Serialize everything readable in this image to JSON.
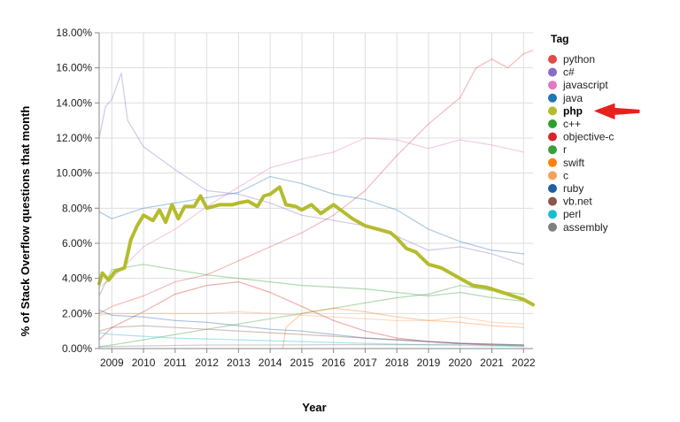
{
  "chart_data": {
    "type": "line",
    "title": "",
    "xlabel": "Year",
    "ylabel": "% of Stack Overflow questions that month",
    "x_ticks": [
      "2009",
      "2010",
      "2011",
      "2012",
      "2013",
      "2014",
      "2015",
      "2016",
      "2017",
      "2018",
      "2019",
      "2020",
      "2021",
      "2022"
    ],
    "y_ticks": [
      "0.00%",
      "2.00%",
      "4.00%",
      "6.00%",
      "8.00%",
      "10.00%",
      "12.00%",
      "14.00%",
      "16.00%",
      "18.00%"
    ],
    "xlim": [
      2008.6,
      2022.3
    ],
    "ylim": [
      0,
      18
    ],
    "grid": true,
    "legend_title": "Tag",
    "legend_position": "right",
    "highlight": "php",
    "series": [
      {
        "name": "python",
        "color": "#e34a48",
        "points": [
          [
            2008.6,
            2
          ],
          [
            2009,
            2.4
          ],
          [
            2010,
            3
          ],
          [
            2011,
            3.8
          ],
          [
            2012,
            4.2
          ],
          [
            2013,
            5
          ],
          [
            2014,
            5.8
          ],
          [
            2015,
            6.6
          ],
          [
            2016,
            7.6
          ],
          [
            2017,
            9
          ],
          [
            2018,
            11
          ],
          [
            2019,
            12.8
          ],
          [
            2020,
            14.3
          ],
          [
            2020.5,
            16
          ],
          [
            2021,
            16.5
          ],
          [
            2021.5,
            16
          ],
          [
            2022,
            16.8
          ],
          [
            2022.3,
            17
          ]
        ]
      },
      {
        "name": "c#",
        "color": "#8c6bc8",
        "points": [
          [
            2008.6,
            12
          ],
          [
            2008.8,
            13.8
          ],
          [
            2009,
            14.2
          ],
          [
            2009.3,
            15.7
          ],
          [
            2009.5,
            13
          ],
          [
            2010,
            11.5
          ],
          [
            2011,
            10.2
          ],
          [
            2012,
            9
          ],
          [
            2013,
            8.8
          ],
          [
            2014,
            8.3
          ],
          [
            2015,
            7.6
          ],
          [
            2016,
            7.3
          ],
          [
            2017,
            7
          ],
          [
            2018,
            6.4
          ],
          [
            2019,
            5.6
          ],
          [
            2020,
            5.8
          ],
          [
            2021,
            5.4
          ],
          [
            2022,
            4.8
          ]
        ]
      },
      {
        "name": "javascript",
        "color": "#e377c2",
        "points": [
          [
            2008.6,
            3.5
          ],
          [
            2009,
            4
          ],
          [
            2010,
            5.8
          ],
          [
            2011,
            6.8
          ],
          [
            2012,
            8.1
          ],
          [
            2013,
            9.2
          ],
          [
            2014,
            10.3
          ],
          [
            2015,
            10.8
          ],
          [
            2016,
            11.2
          ],
          [
            2017,
            12
          ],
          [
            2018,
            11.9
          ],
          [
            2019,
            11.4
          ],
          [
            2020,
            11.9
          ],
          [
            2021,
            11.6
          ],
          [
            2022,
            11.2
          ]
        ]
      },
      {
        "name": "java",
        "color": "#1f77b4",
        "points": [
          [
            2008.6,
            7.8
          ],
          [
            2009,
            7.4
          ],
          [
            2010,
            8
          ],
          [
            2011,
            8.3
          ],
          [
            2012,
            8.6
          ],
          [
            2013,
            8.9
          ],
          [
            2014,
            9.8
          ],
          [
            2015,
            9.4
          ],
          [
            2016,
            8.8
          ],
          [
            2017,
            8.5
          ],
          [
            2018,
            7.9
          ],
          [
            2019,
            6.8
          ],
          [
            2020,
            6.1
          ],
          [
            2021,
            5.6
          ],
          [
            2022,
            5.4
          ]
        ]
      },
      {
        "name": "php",
        "color": "#b4bc2c",
        "points": [
          [
            2008.6,
            3.7
          ],
          [
            2008.7,
            4.3
          ],
          [
            2008.9,
            3.9
          ],
          [
            2009.1,
            4.4
          ],
          [
            2009.4,
            4.6
          ],
          [
            2009.6,
            6.2
          ],
          [
            2009.8,
            7
          ],
          [
            2010,
            7.6
          ],
          [
            2010.3,
            7.3
          ],
          [
            2010.5,
            7.9
          ],
          [
            2010.7,
            7.2
          ],
          [
            2010.9,
            8.2
          ],
          [
            2011.1,
            7.4
          ],
          [
            2011.3,
            8.1
          ],
          [
            2011.6,
            8.1
          ],
          [
            2011.8,
            8.7
          ],
          [
            2012,
            8.0
          ],
          [
            2012.4,
            8.2
          ],
          [
            2012.8,
            8.2
          ],
          [
            2013,
            8.3
          ],
          [
            2013.3,
            8.4
          ],
          [
            2013.6,
            8.1
          ],
          [
            2013.8,
            8.7
          ],
          [
            2014.0,
            8.8
          ],
          [
            2014.3,
            9.2
          ],
          [
            2014.5,
            8.2
          ],
          [
            2014.8,
            8.1
          ],
          [
            2015,
            7.9
          ],
          [
            2015.3,
            8.2
          ],
          [
            2015.6,
            7.7
          ],
          [
            2016,
            8.2
          ],
          [
            2016.3,
            7.8
          ],
          [
            2016.6,
            7.4
          ],
          [
            2017,
            7.0
          ],
          [
            2017.4,
            6.8
          ],
          [
            2017.8,
            6.6
          ],
          [
            2018.0,
            6.3
          ],
          [
            2018.3,
            5.7
          ],
          [
            2018.6,
            5.5
          ],
          [
            2019,
            4.8
          ],
          [
            2019.4,
            4.6
          ],
          [
            2019.8,
            4.2
          ],
          [
            2020,
            4.0
          ],
          [
            2020.4,
            3.6
          ],
          [
            2020.8,
            3.5
          ],
          [
            2021,
            3.4
          ],
          [
            2021.5,
            3.1
          ],
          [
            2022,
            2.8
          ],
          [
            2022.3,
            2.5
          ]
        ]
      },
      {
        "name": "c++",
        "color": "#2ca02c",
        "points": [
          [
            2008.6,
            3
          ],
          [
            2009,
            4.5
          ],
          [
            2010,
            4.8
          ],
          [
            2011,
            4.5
          ],
          [
            2012,
            4.2
          ],
          [
            2013,
            4.0
          ],
          [
            2014,
            3.8
          ],
          [
            2015,
            3.6
          ],
          [
            2016,
            3.5
          ],
          [
            2017,
            3.4
          ],
          [
            2018,
            3.2
          ],
          [
            2019,
            3.0
          ],
          [
            2020,
            3.2
          ],
          [
            2021,
            2.9
          ],
          [
            2022,
            2.7
          ]
        ]
      },
      {
        "name": "objective-c",
        "color": "#d62728",
        "points": [
          [
            2008.6,
            0.5
          ],
          [
            2009,
            1.2
          ],
          [
            2010,
            2.1
          ],
          [
            2011,
            3.1
          ],
          [
            2012,
            3.6
          ],
          [
            2013,
            3.8
          ],
          [
            2014,
            3.2
          ],
          [
            2015,
            2.4
          ],
          [
            2016,
            1.6
          ],
          [
            2017,
            1
          ],
          [
            2018,
            0.6
          ],
          [
            2019,
            0.4
          ],
          [
            2020,
            0.3
          ],
          [
            2021,
            0.2
          ],
          [
            2022,
            0.15
          ]
        ]
      },
      {
        "name": "r",
        "color": "#3a9e3a",
        "points": [
          [
            2008.6,
            0.1
          ],
          [
            2009,
            0.2
          ],
          [
            2010,
            0.5
          ],
          [
            2011,
            0.8
          ],
          [
            2012,
            1.1
          ],
          [
            2013,
            1.4
          ],
          [
            2014,
            1.7
          ],
          [
            2015,
            2.0
          ],
          [
            2016,
            2.3
          ],
          [
            2017,
            2.6
          ],
          [
            2018,
            2.9
          ],
          [
            2019,
            3.1
          ],
          [
            2020,
            3.6
          ],
          [
            2021,
            3.3
          ],
          [
            2022,
            3.1
          ]
        ]
      },
      {
        "name": "swift",
        "color": "#ff7f0e",
        "points": [
          [
            2014.4,
            0
          ],
          [
            2014.5,
            1.2
          ],
          [
            2015,
            2.0
          ],
          [
            2016,
            2.3
          ],
          [
            2017,
            2.1
          ],
          [
            2018,
            1.8
          ],
          [
            2019,
            1.6
          ],
          [
            2020,
            1.5
          ],
          [
            2021,
            1.3
          ],
          [
            2022,
            1.2
          ]
        ]
      },
      {
        "name": "c",
        "color": "#f5a05c",
        "points": [
          [
            2008.6,
            1.9
          ],
          [
            2009,
            2.0
          ],
          [
            2010,
            2.0
          ],
          [
            2011,
            2.0
          ],
          [
            2012,
            2.0
          ],
          [
            2013,
            2.1
          ],
          [
            2014,
            2.0
          ],
          [
            2015,
            1.9
          ],
          [
            2016,
            1.8
          ],
          [
            2017,
            1.7
          ],
          [
            2018,
            1.6
          ],
          [
            2019,
            1.6
          ],
          [
            2020,
            1.8
          ],
          [
            2021,
            1.5
          ],
          [
            2022,
            1.4
          ]
        ]
      },
      {
        "name": "ruby",
        "color": "#1f5fa0",
        "points": [
          [
            2008.6,
            2.2
          ],
          [
            2009,
            1.9
          ],
          [
            2010,
            1.8
          ],
          [
            2011,
            1.6
          ],
          [
            2012,
            1.5
          ],
          [
            2013,
            1.3
          ],
          [
            2014,
            1.1
          ],
          [
            2015,
            1.0
          ],
          [
            2016,
            0.8
          ],
          [
            2017,
            0.6
          ],
          [
            2018,
            0.5
          ],
          [
            2019,
            0.4
          ],
          [
            2020,
            0.3
          ],
          [
            2021,
            0.25
          ],
          [
            2022,
            0.2
          ]
        ]
      },
      {
        "name": "vb.net",
        "color": "#8c564b",
        "points": [
          [
            2008.6,
            1.0
          ],
          [
            2009,
            1.2
          ],
          [
            2010,
            1.3
          ],
          [
            2011,
            1.2
          ],
          [
            2012,
            1.1
          ],
          [
            2013,
            1.0
          ],
          [
            2014,
            0.9
          ],
          [
            2015,
            0.8
          ],
          [
            2016,
            0.7
          ],
          [
            2017,
            0.6
          ],
          [
            2018,
            0.5
          ],
          [
            2019,
            0.4
          ],
          [
            2020,
            0.3
          ],
          [
            2021,
            0.25
          ],
          [
            2022,
            0.2
          ]
        ]
      },
      {
        "name": "perl",
        "color": "#17becf",
        "points": [
          [
            2008.6,
            0.9
          ],
          [
            2009,
            0.8
          ],
          [
            2010,
            0.7
          ],
          [
            2011,
            0.6
          ],
          [
            2012,
            0.55
          ],
          [
            2013,
            0.5
          ],
          [
            2014,
            0.45
          ],
          [
            2015,
            0.4
          ],
          [
            2016,
            0.35
          ],
          [
            2017,
            0.3
          ],
          [
            2018,
            0.25
          ],
          [
            2019,
            0.2
          ],
          [
            2020,
            0.18
          ],
          [
            2021,
            0.15
          ],
          [
            2022,
            0.12
          ]
        ]
      },
      {
        "name": "assembly",
        "color": "#7f7f7f",
        "points": [
          [
            2008.6,
            0.1
          ],
          [
            2010,
            0.15
          ],
          [
            2012,
            0.2
          ],
          [
            2014,
            0.2
          ],
          [
            2016,
            0.22
          ],
          [
            2018,
            0.22
          ],
          [
            2020,
            0.25
          ],
          [
            2021,
            0.2
          ],
          [
            2022,
            0.2
          ]
        ]
      }
    ],
    "annotations": [
      {
        "type": "arrow",
        "target": "legend:php",
        "color": "#e8211e"
      }
    ]
  }
}
